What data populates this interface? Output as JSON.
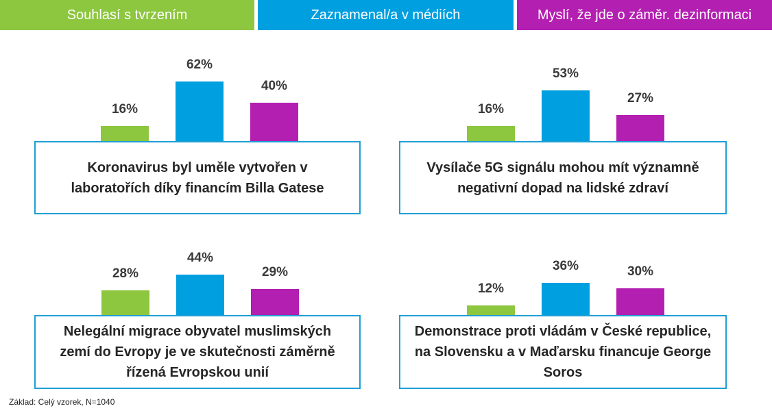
{
  "legend": [
    {
      "label": "Souhlasí s tvrzením",
      "color": "#8dc63f"
    },
    {
      "label": "Zaznamenal/a v médiích",
      "color": "#009fdf"
    },
    {
      "label": "Myslí, že jde o záměr. dezinformaci",
      "color": "#b31fb0"
    }
  ],
  "chart_data": {
    "type": "bar",
    "categories": [
      "Souhlasí s tvrzením",
      "Zaznamenal/a v médiích",
      "Myslí, že jde o záměr. dezinformaci"
    ],
    "panels": [
      {
        "statement": "Koronavirus byl uměle vytvořen v laboratořích díky financím Billa Gatese",
        "values": [
          16,
          62,
          40
        ],
        "labels": [
          "16%",
          "62%",
          "40%"
        ]
      },
      {
        "statement": "Vysílače 5G signálu mohou mít významně negativní dopad na lidské zdraví",
        "values": [
          16,
          53,
          27
        ],
        "labels": [
          "16%",
          "53%",
          "27%"
        ]
      },
      {
        "statement": "Nelegální migrace obyvatel muslimských zemí do Evropy je ve skutečnosti záměrně řízená Evropskou unií",
        "values": [
          28,
          44,
          29
        ],
        "labels": [
          "28%",
          "44%",
          "29%"
        ]
      },
      {
        "statement": "Demonstrace proti vládám v České republice, na Slovensku a v Maďarsku financuje George Soros",
        "values": [
          12,
          36,
          30
        ],
        "labels": [
          "12%",
          "36%",
          "30%"
        ]
      }
    ]
  },
  "footnote": "Základ: Celý vzorek, N=1040"
}
